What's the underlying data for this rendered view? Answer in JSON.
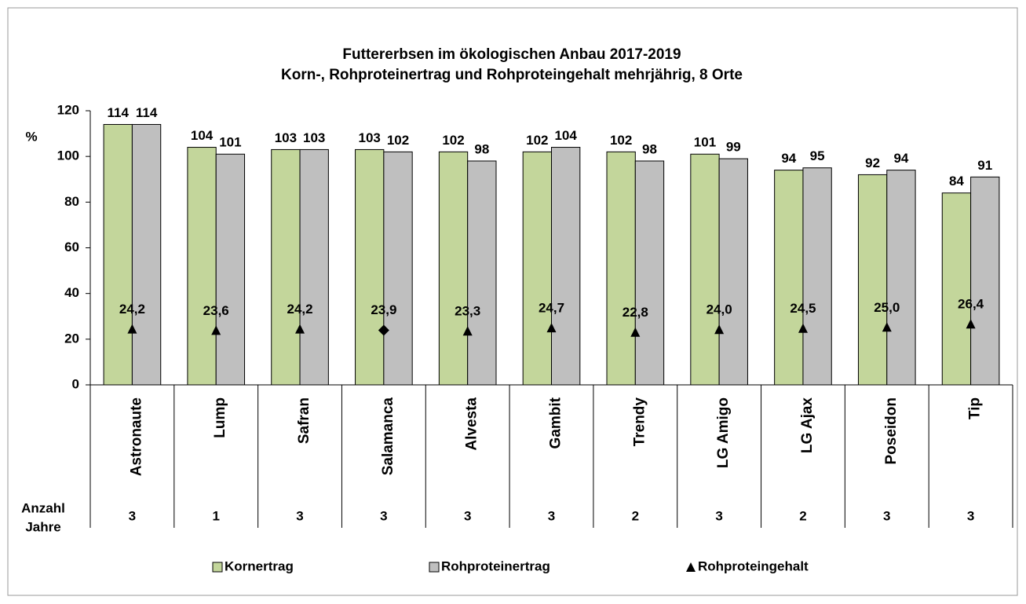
{
  "chart_data": {
    "type": "bar",
    "title": [
      "Futtererbsen im ökologischen Anbau 2017-2019",
      "Korn-, Rohproteinertrag und Rohproteingehalt mehrjährig, 8 Orte"
    ],
    "y_label": "%",
    "categories": [
      "Astronaute",
      "Lump",
      "Safran",
      "Salamanca",
      "Alvesta",
      "Gambit",
      "Trendy",
      "LG Amigo",
      "LG Ajax",
      "Poseidon",
      "Tip"
    ],
    "series": [
      {
        "name": "Kornertrag",
        "type": "bar",
        "color": "#c3d69b",
        "values": [
          114,
          104,
          103,
          103,
          102,
          102,
          102,
          101,
          94,
          92,
          84
        ]
      },
      {
        "name": "Rohproteinertrag",
        "type": "bar",
        "color": "#bfbfbf",
        "values": [
          114,
          101,
          103,
          102,
          98,
          104,
          98,
          99,
          95,
          94,
          91
        ]
      },
      {
        "name": "Rohproteingehalt",
        "type": "scatter",
        "color": "#000000",
        "values": [
          24.2,
          23.6,
          24.2,
          23.9,
          23.3,
          24.7,
          22.8,
          24.0,
          24.5,
          25.0,
          26.4
        ],
        "value_labels": [
          "24,2",
          "23,6",
          "24,2",
          "23,9",
          "23,3",
          "24,7",
          "22,8",
          "24,0",
          "24,5",
          "25,0",
          "26,4"
        ],
        "markers": [
          "triangle",
          "triangle",
          "triangle",
          "diamond",
          "triangle",
          "triangle",
          "triangle",
          "triangle",
          "triangle",
          "triangle",
          "triangle"
        ]
      }
    ],
    "years_label": [
      "Anzahl",
      "Jahre"
    ],
    "years": [
      3,
      1,
      3,
      3,
      3,
      3,
      2,
      3,
      2,
      3,
      3
    ],
    "ylim": [
      0,
      120
    ],
    "yticks": [
      0,
      20,
      40,
      60,
      80,
      100,
      120
    ],
    "grid": false
  }
}
